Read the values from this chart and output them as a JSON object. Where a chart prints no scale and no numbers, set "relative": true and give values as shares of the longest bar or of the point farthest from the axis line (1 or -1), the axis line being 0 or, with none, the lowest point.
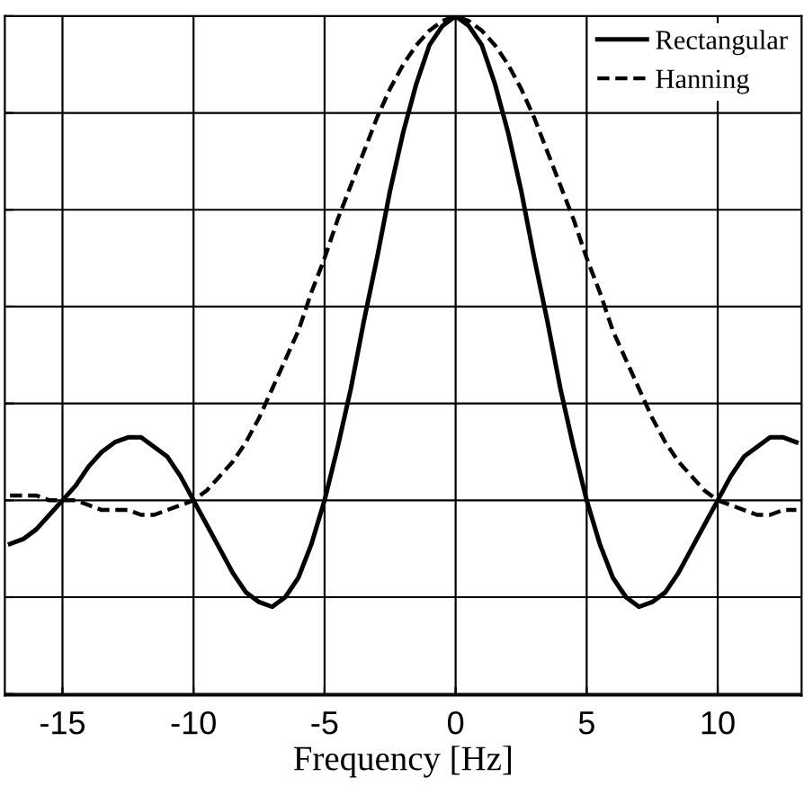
{
  "chart_data": {
    "type": "line",
    "relative": true,
    "xlabel": "Frequency [Hz]",
    "x": [
      -17,
      -16.5,
      -16,
      -15.5,
      -15,
      -14.5,
      -14,
      -13.5,
      -13,
      -12.5,
      -12,
      -11.5,
      -11,
      -10.5,
      -10,
      -9.5,
      -9,
      -8.5,
      -8,
      -7.5,
      -7,
      -6.5,
      -6,
      -5.5,
      -5,
      -4.5,
      -4,
      -3.5,
      -3,
      -2.5,
      -2,
      -1.5,
      -1,
      -0.5,
      0,
      0.5,
      1,
      1.5,
      2,
      2.5,
      3,
      3.5,
      4,
      4.5,
      5,
      5.5,
      6,
      6.5,
      7,
      7.5,
      8,
      8.5,
      9,
      9.5,
      10,
      10.5,
      11,
      11.5,
      12,
      12.5,
      13
    ],
    "xlim": [
      -17.2,
      13.2
    ],
    "xticks": [
      -15,
      -10,
      -5,
      0,
      5,
      10
    ],
    "tick_labels": "x",
    "grid": true,
    "legend": "top right",
    "marker": "none",
    "series": [
      {
        "name": "Rectangular",
        "color": "#000000",
        "line_style": "solid",
        "values": [
          -0.09,
          -0.08,
          -0.06,
          -0.03,
          0,
          0.03,
          0.07,
          0.1,
          0.12,
          0.13,
          0.13,
          0.11,
          0.09,
          0.05,
          0,
          -0.05,
          -0.1,
          -0.15,
          -0.19,
          -0.21,
          -0.22,
          -0.2,
          -0.16,
          -0.09,
          0,
          0.11,
          0.23,
          0.37,
          0.5,
          0.64,
          0.76,
          0.86,
          0.94,
          0.98,
          1,
          0.98,
          0.94,
          0.86,
          0.76,
          0.64,
          0.5,
          0.37,
          0.23,
          0.11,
          0,
          -0.09,
          -0.16,
          -0.2,
          -0.22,
          -0.21,
          -0.19,
          -0.15,
          -0.1,
          -0.05,
          0,
          0.05,
          0.09,
          0.11,
          0.13,
          0.13,
          0.12
        ]
      },
      {
        "name": "Hanning",
        "color": "#000000",
        "line_style": "dashed",
        "values": [
          0.01,
          0.01,
          0.01,
          0,
          0,
          0,
          -0.01,
          -0.02,
          -0.02,
          -0.02,
          -0.03,
          -0.03,
          -0.02,
          -0.01,
          0,
          0.02,
          0.05,
          0.08,
          0.12,
          0.17,
          0.23,
          0.29,
          0.35,
          0.43,
          0.5,
          0.58,
          0.65,
          0.72,
          0.79,
          0.85,
          0.9,
          0.94,
          0.97,
          0.99,
          1,
          0.99,
          0.97,
          0.94,
          0.9,
          0.85,
          0.79,
          0.72,
          0.65,
          0.58,
          0.5,
          0.43,
          0.35,
          0.29,
          0.23,
          0.17,
          0.12,
          0.08,
          0.05,
          0.02,
          0,
          -0.01,
          -0.02,
          -0.03,
          -0.03,
          -0.02,
          -0.02
        ]
      }
    ]
  }
}
